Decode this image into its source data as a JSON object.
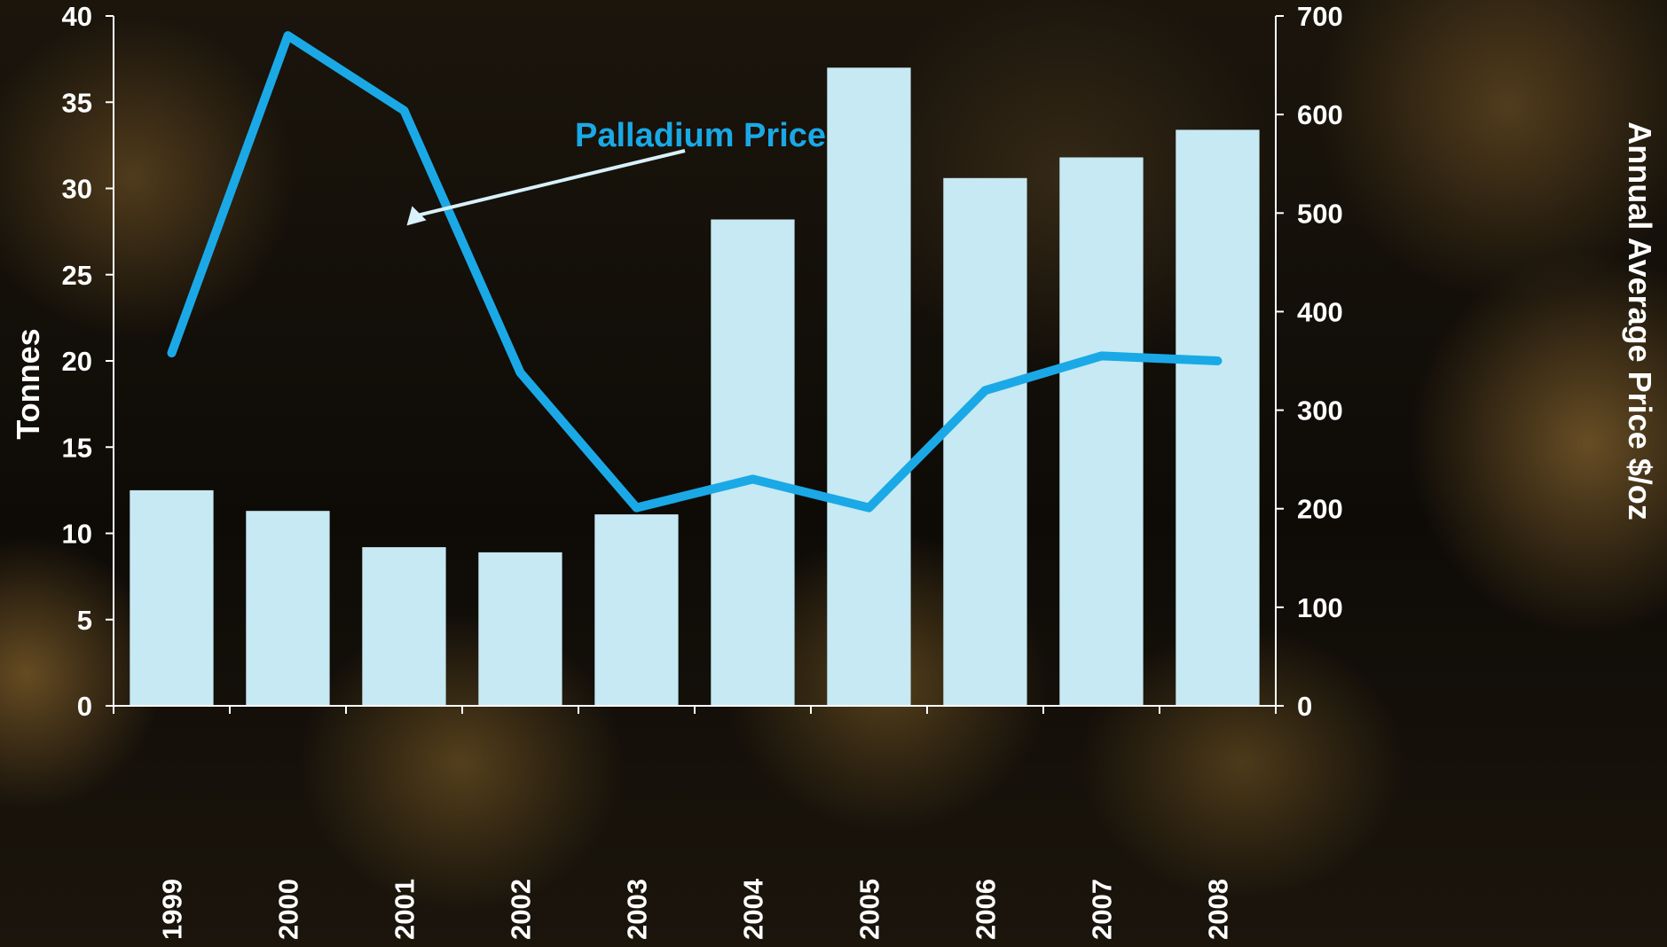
{
  "chart_data": {
    "type": "bar",
    "categories": [
      "1999",
      "2000",
      "2001",
      "2002",
      "2003",
      "2004",
      "2005",
      "2006",
      "2007",
      "2008"
    ],
    "series": [
      {
        "axis": "left",
        "mark": "bar",
        "values": [
          12.5,
          11.3,
          9.2,
          8.9,
          11.1,
          28.2,
          37.0,
          30.6,
          31.8,
          33.4
        ],
        "color": "#c6e9f3"
      },
      {
        "name": "Palladium Price",
        "axis": "right",
        "mark": "line",
        "values": [
          358,
          680,
          604,
          338,
          201,
          230,
          201,
          320,
          355,
          350
        ],
        "color": "#1aa9e6"
      }
    ],
    "ylabel": "Tonnes",
    "ylim": [
      0,
      40
    ],
    "yticks": [
      0,
      5,
      10,
      15,
      20,
      25,
      30,
      35,
      40
    ],
    "y2label": "Annual Average Price  $/oz",
    "y2lim": [
      0,
      700
    ],
    "y2ticks": [
      0,
      100,
      200,
      300,
      400,
      500,
      600,
      700
    ],
    "annotations": [
      {
        "text": "Palladium Price",
        "points_to": {
          "series": "Palladium Price",
          "x_position": 2.5,
          "value": 490
        }
      }
    ],
    "grid": false,
    "legend": "none"
  }
}
